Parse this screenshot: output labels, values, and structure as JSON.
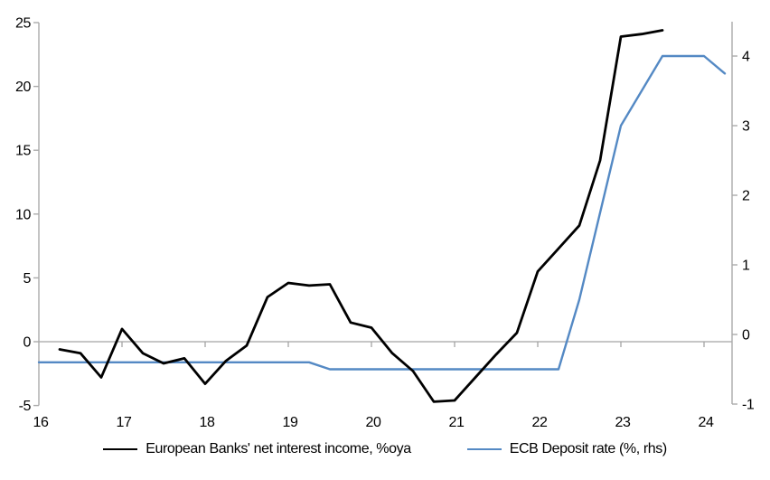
{
  "chart_data": {
    "type": "line",
    "title": "",
    "legend_position": "bottom",
    "x_axis": {
      "tick_labels": [
        "16",
        "17",
        "18",
        "19",
        "20",
        "21",
        "22",
        "23",
        "24"
      ],
      "tick_values": [
        16,
        17,
        18,
        19,
        20,
        21,
        22,
        23,
        24
      ],
      "range": [
        16,
        24.35
      ]
    },
    "left_axis": {
      "tick_labels": [
        "-5",
        "0",
        "5",
        "10",
        "15",
        "20",
        "25"
      ],
      "tick_values": [
        -5,
        0,
        5,
        10,
        15,
        20,
        25
      ],
      "range": [
        -5,
        25
      ]
    },
    "right_axis": {
      "tick_labels": [
        "-1",
        "0",
        "1",
        "2",
        "3",
        "4"
      ],
      "tick_values": [
        -1,
        0,
        1,
        2,
        3,
        4
      ],
      "range": [
        -1,
        4.5
      ]
    },
    "series": [
      {
        "name": "European Banks' net interest income, %oya",
        "axis": "left",
        "color": "#000000",
        "x": [
          16.25,
          16.5,
          16.75,
          17.0,
          17.25,
          17.5,
          17.75,
          18.0,
          18.25,
          18.5,
          18.75,
          19.0,
          19.25,
          19.5,
          19.75,
          20.0,
          20.25,
          20.5,
          20.75,
          21.0,
          21.25,
          21.5,
          21.75,
          22.0,
          22.25,
          22.5,
          22.75,
          23.0,
          23.25,
          23.5
        ],
        "values": [
          -0.6,
          -0.9,
          -2.8,
          1.0,
          -0.9,
          -1.7,
          -1.3,
          -3.3,
          -1.5,
          -0.3,
          3.5,
          4.6,
          4.4,
          4.5,
          1.5,
          1.1,
          -0.9,
          -2.3,
          -4.7,
          -4.6,
          -2.8,
          -1.0,
          0.7,
          5.5,
          7.3,
          9.1,
          14.2,
          23.9,
          24.1,
          24.4
        ]
      },
      {
        "name": "ECB Deposit rate (%, rhs)",
        "axis": "right",
        "color": "#5489C4",
        "x": [
          16.0,
          16.25,
          16.5,
          16.75,
          17.0,
          17.25,
          17.5,
          17.75,
          18.0,
          18.25,
          18.5,
          18.75,
          19.0,
          19.25,
          19.5,
          19.75,
          20.0,
          20.25,
          20.5,
          20.75,
          21.0,
          21.25,
          21.5,
          21.75,
          22.0,
          22.25,
          22.5,
          22.75,
          23.0,
          23.25,
          23.5,
          23.75,
          24.0,
          24.25
        ],
        "values": [
          -0.4,
          -0.4,
          -0.4,
          -0.4,
          -0.4,
          -0.4,
          -0.4,
          -0.4,
          -0.4,
          -0.4,
          -0.4,
          -0.4,
          -0.4,
          -0.4,
          -0.5,
          -0.5,
          -0.5,
          -0.5,
          -0.5,
          -0.5,
          -0.5,
          -0.5,
          -0.5,
          -0.5,
          -0.5,
          -0.5,
          0.5,
          1.75,
          3.0,
          3.5,
          4.0,
          4.0,
          4.0,
          3.75
        ]
      }
    ],
    "colors": {
      "axis_line": "#ABABAB",
      "zero_line": "#A3A3A3"
    }
  }
}
